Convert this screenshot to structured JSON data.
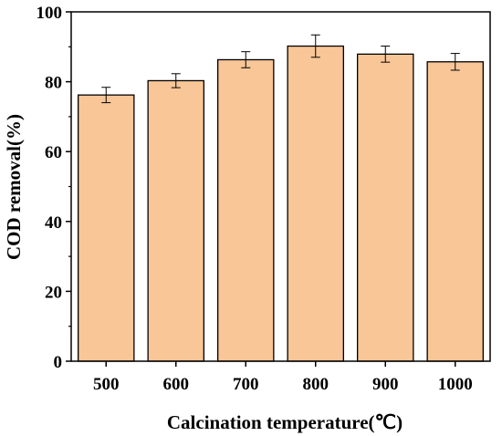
{
  "chart_data": {
    "type": "bar",
    "title": "",
    "xlabel": "Calcination temperature(℃)",
    "ylabel": "COD removal(%)",
    "categories": [
      "500",
      "600",
      "700",
      "800",
      "900",
      "1000"
    ],
    "values": [
      76.2,
      80.3,
      86.3,
      90.2,
      87.9,
      85.7
    ],
    "errors": [
      2.2,
      2.0,
      2.3,
      3.2,
      2.3,
      2.4
    ],
    "ylim": [
      0,
      100
    ],
    "yticks": [
      "0",
      "20",
      "40",
      "60",
      "80",
      "100"
    ],
    "ytick_values": [
      0,
      20,
      40,
      60,
      80,
      100
    ],
    "grid": false,
    "bar_color": "#f9c697",
    "bar_edge_color": "#000000"
  }
}
